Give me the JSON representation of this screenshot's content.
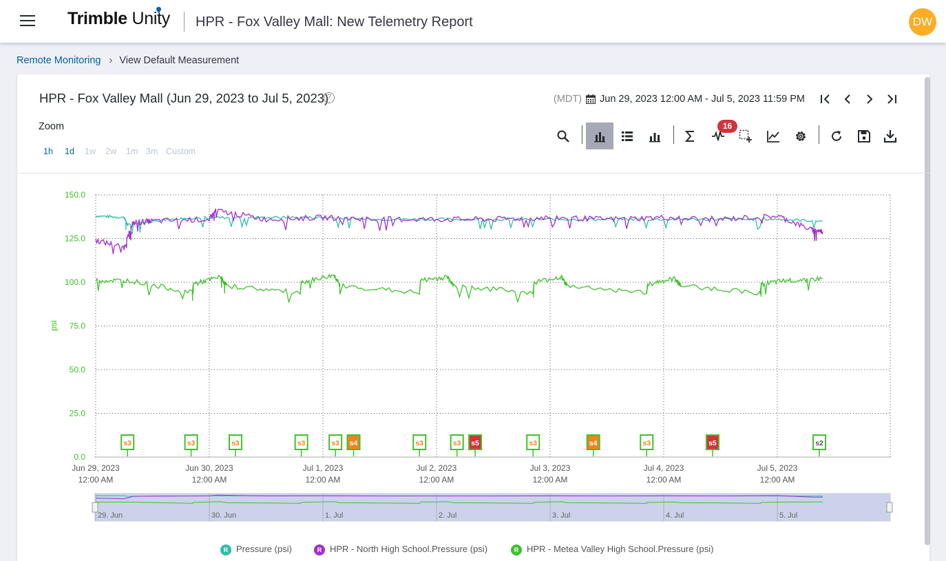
{
  "header": {
    "app_name_bold": "Trimble",
    "app_name_light": "Unity",
    "title": "HPR - Fox Valley Mall: New Telemetry Report",
    "avatar_initials": "DW"
  },
  "breadcrumb": {
    "link": "Remote Monitoring",
    "current": "View Default Measurement"
  },
  "report": {
    "title": "HPR - Fox Valley Mall (Jun 29, 2023 to Jul 5, 2023)",
    "timezone": "(MDT)",
    "date_range": "Jun 29, 2023 12:00 AM - Jul 5, 2023 11:59 PM",
    "zoom_label": "Zoom",
    "zoom_options": [
      "1h",
      "1d",
      "1w",
      "2w",
      "1m",
      "3m",
      "Custom"
    ],
    "toolbar_badge": "16"
  },
  "colors": {
    "pressure": "#2ebfa5",
    "north_high": "#a32fcf",
    "metea_valley": "#3dc22a",
    "s3_border": "#3dc22a",
    "s4": "#f5821f",
    "s5": "#d4323b",
    "axis_label": "#3dc22a"
  },
  "chart_data": {
    "type": "line",
    "ylabel": "psi",
    "ylim": [
      0,
      150
    ],
    "yticks": [
      "150.0",
      "125.0",
      "100.0",
      "75.0",
      "50.0",
      "25.0",
      "0.0"
    ],
    "xticks": [
      {
        "date": "Jun 29, 2023",
        "time": "12:00 AM"
      },
      {
        "date": "Jun 30, 2023",
        "time": "12:00 AM"
      },
      {
        "date": "Jul 1, 2023",
        "time": "12:00 AM"
      },
      {
        "date": "Jul 2, 2023",
        "time": "12:00 AM"
      },
      {
        "date": "Jul 3, 2023",
        "time": "12:00 AM"
      },
      {
        "date": "Jul 4, 2023",
        "time": "12:00 AM"
      },
      {
        "date": "Jul 5, 2023",
        "time": "12:00 AM"
      }
    ],
    "navigator_labels": [
      "29. Jun",
      "30. Jun",
      "1. Jul",
      "2. Jul",
      "3. Jul",
      "4. Jul",
      "5. Jul"
    ],
    "series": [
      {
        "name": "Pressure (psi)",
        "x": [
          0,
          0.25,
          0.28,
          0.5,
          1.0,
          1.5,
          2.0,
          2.5,
          3.0,
          3.5,
          4.0,
          4.5,
          5.0,
          5.5,
          6.0,
          6.4
        ],
        "values": [
          138,
          137,
          133,
          135,
          137,
          137,
          137,
          136,
          136,
          136,
          136,
          136,
          136,
          136,
          136,
          135
        ]
      },
      {
        "name": "HPR - North High School.Pressure (psi)",
        "x": [
          0,
          0.25,
          0.33,
          0.5,
          1.0,
          1.06,
          1.5,
          2.0,
          2.5,
          3.0,
          3.5,
          4.0,
          4.5,
          5.0,
          5.5,
          6.0,
          6.3,
          6.4
        ],
        "values": [
          124,
          120,
          134,
          135,
          136,
          141,
          136,
          137,
          136,
          136,
          136,
          137,
          136,
          137,
          136,
          138,
          130,
          129
        ]
      },
      {
        "name": "HPR - Metea Valley High School.Pressure (psi)",
        "x": [
          0,
          0.3,
          0.85,
          0.86,
          1.1,
          1.15,
          1.8,
          1.81,
          2.1,
          2.15,
          2.85,
          2.86,
          3.1,
          3.15,
          3.85,
          3.86,
          4.1,
          4.15,
          4.85,
          4.86,
          5.1,
          5.15,
          5.85,
          5.86,
          6.1,
          6.4
        ],
        "values": [
          101,
          101,
          94,
          99,
          103,
          98,
          94,
          100,
          104,
          98,
          94,
          101,
          103,
          98,
          94,
          100,
          103,
          98,
          94,
          99,
          102,
          98,
          94,
          99,
          101,
          102
        ]
      }
    ],
    "events": [
      {
        "label": "s3",
        "x": 0.28
      },
      {
        "label": "s3",
        "x": 0.84
      },
      {
        "label": "s3",
        "x": 1.23
      },
      {
        "label": "s3",
        "x": 1.81
      },
      {
        "label": "s3",
        "x": 2.11
      },
      {
        "label": "s4",
        "x": 2.27
      },
      {
        "label": "s3",
        "x": 2.85
      },
      {
        "label": "s3",
        "x": 3.18
      },
      {
        "label": "s5",
        "x": 3.34
      },
      {
        "label": "s3",
        "x": 3.85
      },
      {
        "label": "s4",
        "x": 4.38
      },
      {
        "label": "s3",
        "x": 4.85
      },
      {
        "label": "s5",
        "x": 5.43
      },
      {
        "label": "s2",
        "x": 6.37
      }
    ]
  },
  "legend": [
    "Pressure (psi)",
    "HPR - North High School.Pressure (psi)",
    "HPR - Metea Valley High School.Pressure (psi)"
  ],
  "legend_badge": "R"
}
